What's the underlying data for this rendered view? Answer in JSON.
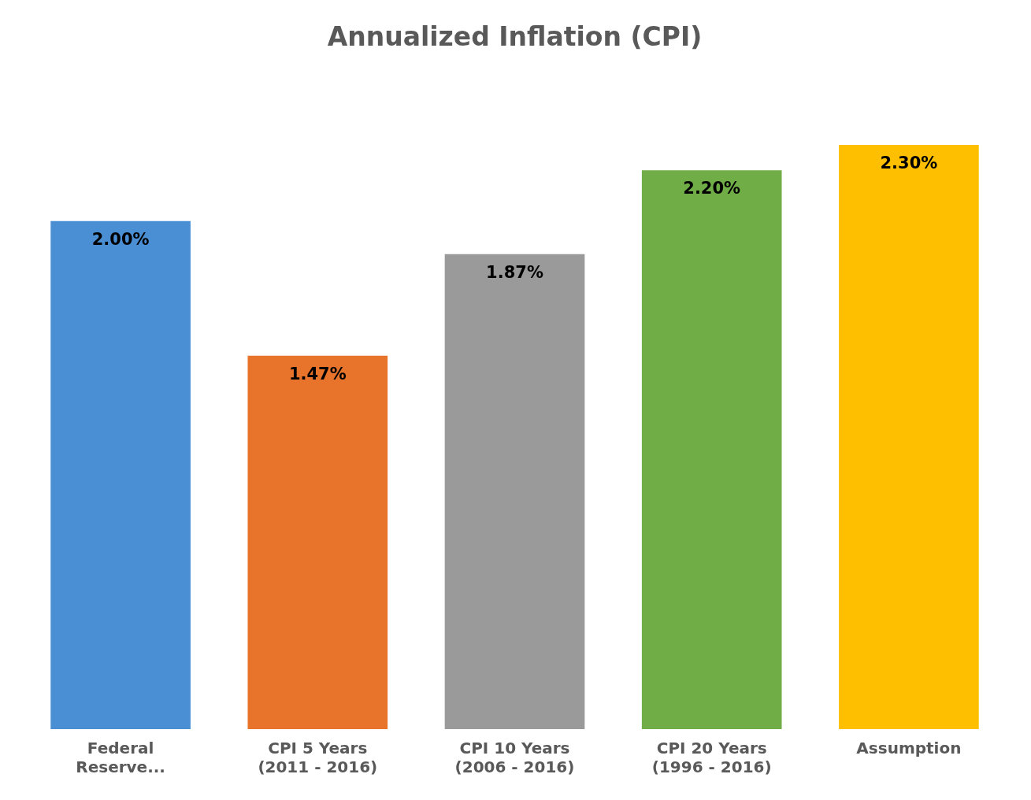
{
  "chart_data": {
    "type": "bar",
    "title": "Annualized Inflation (CPI)",
    "categories": [
      "Federal Reserve...",
      "CPI 5 Years (2011 - 2016)",
      "CPI 10 Years (2006 - 2016)",
      "CPI 20 Years (1996 - 2016)",
      "Assumption"
    ],
    "values": [
      2.0,
      1.47,
      1.87,
      2.2,
      2.3
    ],
    "value_labels": [
      "2.00%",
      "1.47%",
      "1.87%",
      "2.20%",
      "2.30%"
    ],
    "colors": [
      "#4a8fd4",
      "#e8732a",
      "#9a9a9a",
      "#70ad47",
      "#fdbf00"
    ],
    "grid": false,
    "legend": false
  }
}
